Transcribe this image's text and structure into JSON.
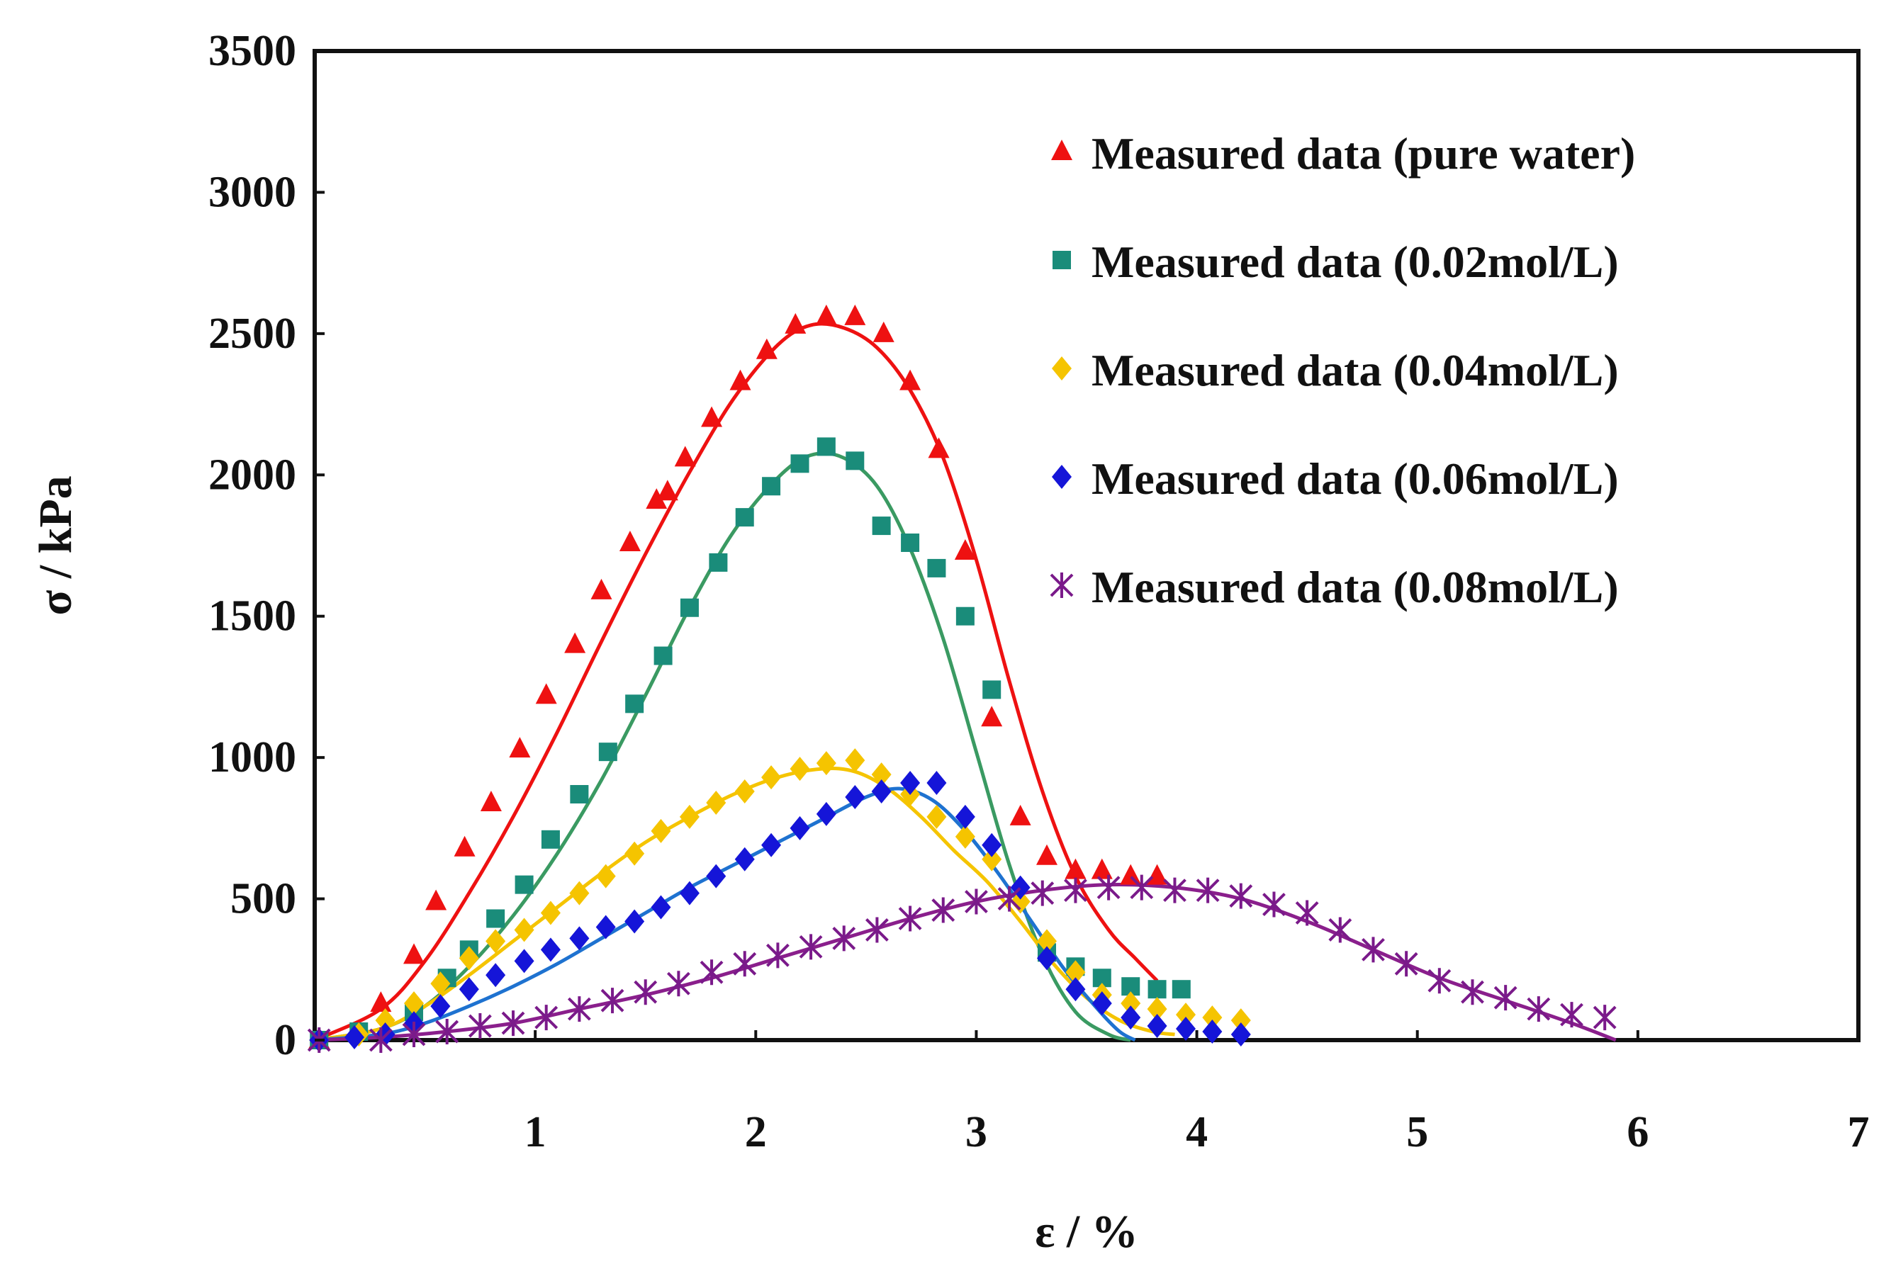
{
  "chart_data": {
    "type": "scatter",
    "title": "",
    "xlabel": "ε / %",
    "ylabel": "σ / kPa",
    "xlim": [
      0,
      7
    ],
    "ylim": [
      0,
      3500
    ],
    "xticks": [
      1,
      2,
      3,
      4,
      5,
      6,
      7
    ],
    "yticks": [
      0,
      500,
      1000,
      1500,
      2000,
      2500,
      3000,
      3500
    ],
    "legend_position": "top-right",
    "series": [
      {
        "name": "Measured data (pure water)",
        "color": "#ee1111",
        "marker": "triangle",
        "points": [
          [
            0.02,
            0
          ],
          [
            0.3,
            130
          ],
          [
            0.45,
            300
          ],
          [
            0.55,
            490
          ],
          [
            0.68,
            680
          ],
          [
            0.8,
            840
          ],
          [
            0.93,
            1030
          ],
          [
            1.05,
            1220
          ],
          [
            1.18,
            1400
          ],
          [
            1.3,
            1590
          ],
          [
            1.43,
            1760
          ],
          [
            1.55,
            1910
          ],
          [
            1.6,
            1940
          ],
          [
            1.68,
            2060
          ],
          [
            1.8,
            2200
          ],
          [
            1.93,
            2330
          ],
          [
            2.05,
            2440
          ],
          [
            2.18,
            2530
          ],
          [
            2.32,
            2560
          ],
          [
            2.45,
            2560
          ],
          [
            2.58,
            2500
          ],
          [
            2.7,
            2330
          ],
          [
            2.83,
            2090
          ],
          [
            2.95,
            1730
          ],
          [
            3.07,
            1140
          ],
          [
            3.2,
            790
          ],
          [
            3.32,
            650
          ],
          [
            3.45,
            600
          ],
          [
            3.57,
            600
          ],
          [
            3.7,
            580
          ],
          [
            3.82,
            580
          ]
        ]
      },
      {
        "name": "Measured data (0.02mol/L)",
        "color": "#1a8c7a",
        "marker": "square",
        "points": [
          [
            0.02,
            0
          ],
          [
            0.2,
            30
          ],
          [
            0.45,
            100
          ],
          [
            0.6,
            220
          ],
          [
            0.7,
            320
          ],
          [
            0.82,
            430
          ],
          [
            0.95,
            550
          ],
          [
            1.07,
            710
          ],
          [
            1.2,
            870
          ],
          [
            1.33,
            1020
          ],
          [
            1.45,
            1190
          ],
          [
            1.58,
            1360
          ],
          [
            1.7,
            1530
          ],
          [
            1.83,
            1690
          ],
          [
            1.95,
            1850
          ],
          [
            2.07,
            1960
          ],
          [
            2.2,
            2040
          ],
          [
            2.32,
            2100
          ],
          [
            2.45,
            2050
          ],
          [
            2.57,
            1820
          ],
          [
            2.7,
            1760
          ],
          [
            2.82,
            1670
          ],
          [
            2.95,
            1500
          ],
          [
            3.07,
            1240
          ],
          [
            3.32,
            310
          ],
          [
            3.45,
            260
          ],
          [
            3.57,
            220
          ],
          [
            3.7,
            190
          ],
          [
            3.82,
            180
          ],
          [
            3.93,
            180
          ]
        ]
      },
      {
        "name": "Measured data (0.04mol/L)",
        "color": "#f5c400",
        "marker": "diamond",
        "points": [
          [
            0.02,
            0
          ],
          [
            0.2,
            20
          ],
          [
            0.32,
            70
          ],
          [
            0.45,
            130
          ],
          [
            0.57,
            200
          ],
          [
            0.7,
            290
          ],
          [
            0.82,
            350
          ],
          [
            0.95,
            390
          ],
          [
            1.07,
            450
          ],
          [
            1.2,
            520
          ],
          [
            1.32,
            580
          ],
          [
            1.45,
            660
          ],
          [
            1.57,
            740
          ],
          [
            1.7,
            790
          ],
          [
            1.82,
            840
          ],
          [
            1.95,
            880
          ],
          [
            2.07,
            930
          ],
          [
            2.2,
            960
          ],
          [
            2.32,
            980
          ],
          [
            2.45,
            990
          ],
          [
            2.57,
            940
          ],
          [
            2.7,
            870
          ],
          [
            2.82,
            790
          ],
          [
            2.95,
            720
          ],
          [
            3.07,
            640
          ],
          [
            3.2,
            490
          ],
          [
            3.32,
            350
          ],
          [
            3.45,
            240
          ],
          [
            3.57,
            160
          ],
          [
            3.7,
            130
          ],
          [
            3.82,
            110
          ],
          [
            3.95,
            90
          ],
          [
            4.07,
            80
          ],
          [
            4.2,
            70
          ]
        ]
      },
      {
        "name": "Measured data (0.06mol/L)",
        "color": "#1515d8",
        "marker": "diamond",
        "points": [
          [
            0.02,
            0
          ],
          [
            0.18,
            10
          ],
          [
            0.32,
            20
          ],
          [
            0.45,
            60
          ],
          [
            0.57,
            120
          ],
          [
            0.7,
            180
          ],
          [
            0.82,
            230
          ],
          [
            0.95,
            280
          ],
          [
            1.07,
            320
          ],
          [
            1.2,
            360
          ],
          [
            1.32,
            400
          ],
          [
            1.45,
            420
          ],
          [
            1.57,
            470
          ],
          [
            1.7,
            520
          ],
          [
            1.82,
            580
          ],
          [
            1.95,
            640
          ],
          [
            2.07,
            690
          ],
          [
            2.2,
            750
          ],
          [
            2.32,
            800
          ],
          [
            2.45,
            860
          ],
          [
            2.57,
            880
          ],
          [
            2.7,
            910
          ],
          [
            2.82,
            910
          ],
          [
            2.95,
            790
          ],
          [
            3.07,
            690
          ],
          [
            3.2,
            540
          ],
          [
            3.32,
            290
          ],
          [
            3.45,
            180
          ],
          [
            3.57,
            130
          ],
          [
            3.7,
            80
          ],
          [
            3.82,
            50
          ],
          [
            3.95,
            40
          ],
          [
            4.07,
            30
          ],
          [
            4.2,
            20
          ]
        ]
      },
      {
        "name": "Measured data (0.08mol/L)",
        "color": "#7a1a8a",
        "marker": "star",
        "points": [
          [
            0.02,
            0
          ],
          [
            0.3,
            0
          ],
          [
            0.45,
            20
          ],
          [
            0.6,
            30
          ],
          [
            0.75,
            50
          ],
          [
            0.9,
            60
          ],
          [
            1.05,
            80
          ],
          [
            1.2,
            110
          ],
          [
            1.35,
            140
          ],
          [
            1.5,
            170
          ],
          [
            1.65,
            200
          ],
          [
            1.8,
            240
          ],
          [
            1.95,
            270
          ],
          [
            2.1,
            300
          ],
          [
            2.25,
            330
          ],
          [
            2.4,
            360
          ],
          [
            2.55,
            390
          ],
          [
            2.7,
            430
          ],
          [
            2.85,
            460
          ],
          [
            3.0,
            490
          ],
          [
            3.15,
            500
          ],
          [
            3.3,
            520
          ],
          [
            3.45,
            530
          ],
          [
            3.6,
            540
          ],
          [
            3.75,
            540
          ],
          [
            3.9,
            530
          ],
          [
            4.05,
            530
          ],
          [
            4.2,
            510
          ],
          [
            4.35,
            480
          ],
          [
            4.5,
            450
          ],
          [
            4.65,
            390
          ],
          [
            4.8,
            320
          ],
          [
            4.95,
            270
          ],
          [
            5.1,
            210
          ],
          [
            5.25,
            170
          ],
          [
            5.4,
            150
          ],
          [
            5.55,
            110
          ],
          [
            5.7,
            90
          ],
          [
            5.85,
            80
          ]
        ]
      }
    ],
    "fit_curves": [
      {
        "color": "#ee1111",
        "points": [
          [
            0,
            0
          ],
          [
            0.3,
            110
          ],
          [
            0.5,
            280
          ],
          [
            0.7,
            520
          ],
          [
            0.9,
            790
          ],
          [
            1.1,
            1090
          ],
          [
            1.3,
            1410
          ],
          [
            1.5,
            1720
          ],
          [
            1.7,
            2010
          ],
          [
            1.9,
            2270
          ],
          [
            2.1,
            2460
          ],
          [
            2.25,
            2530
          ],
          [
            2.4,
            2520
          ],
          [
            2.55,
            2450
          ],
          [
            2.7,
            2300
          ],
          [
            2.85,
            2060
          ],
          [
            3.0,
            1700
          ],
          [
            3.15,
            1270
          ],
          [
            3.3,
            880
          ],
          [
            3.45,
            580
          ],
          [
            3.6,
            390
          ],
          [
            3.72,
            290
          ],
          [
            3.82,
            210
          ]
        ]
      },
      {
        "color": "#3a9a62",
        "points": [
          [
            0,
            0
          ],
          [
            0.3,
            40
          ],
          [
            0.5,
            120
          ],
          [
            0.7,
            260
          ],
          [
            0.9,
            440
          ],
          [
            1.1,
            660
          ],
          [
            1.3,
            920
          ],
          [
            1.5,
            1220
          ],
          [
            1.7,
            1530
          ],
          [
            1.9,
            1800
          ],
          [
            2.1,
            1990
          ],
          [
            2.25,
            2070
          ],
          [
            2.4,
            2060
          ],
          [
            2.55,
            1960
          ],
          [
            2.7,
            1740
          ],
          [
            2.85,
            1420
          ],
          [
            3.0,
            1020
          ],
          [
            3.15,
            620
          ],
          [
            3.3,
            300
          ],
          [
            3.45,
            100
          ],
          [
            3.6,
            20
          ],
          [
            3.7,
            0
          ]
        ]
      },
      {
        "color": "#f5c400",
        "points": [
          [
            0,
            0
          ],
          [
            0.3,
            40
          ],
          [
            0.5,
            120
          ],
          [
            0.7,
            230
          ],
          [
            0.9,
            350
          ],
          [
            1.1,
            470
          ],
          [
            1.3,
            590
          ],
          [
            1.5,
            700
          ],
          [
            1.7,
            790
          ],
          [
            1.9,
            870
          ],
          [
            2.1,
            930
          ],
          [
            2.3,
            960
          ],
          [
            2.45,
            950
          ],
          [
            2.6,
            890
          ],
          [
            2.75,
            790
          ],
          [
            2.9,
            670
          ],
          [
            3.05,
            560
          ],
          [
            3.2,
            420
          ],
          [
            3.35,
            270
          ],
          [
            3.5,
            150
          ],
          [
            3.65,
            70
          ],
          [
            3.8,
            30
          ],
          [
            3.9,
            20
          ]
        ]
      },
      {
        "color": "#1e72d0",
        "points": [
          [
            0,
            0
          ],
          [
            0.3,
            20
          ],
          [
            0.5,
            60
          ],
          [
            0.7,
            120
          ],
          [
            0.9,
            190
          ],
          [
            1.1,
            270
          ],
          [
            1.3,
            360
          ],
          [
            1.5,
            450
          ],
          [
            1.7,
            540
          ],
          [
            1.9,
            620
          ],
          [
            2.1,
            700
          ],
          [
            2.3,
            780
          ],
          [
            2.5,
            860
          ],
          [
            2.65,
            890
          ],
          [
            2.8,
            850
          ],
          [
            2.95,
            740
          ],
          [
            3.1,
            590
          ],
          [
            3.25,
            420
          ],
          [
            3.4,
            250
          ],
          [
            3.55,
            110
          ],
          [
            3.65,
            30
          ],
          [
            3.72,
            0
          ]
        ]
      },
      {
        "color": "#8a1f8c",
        "points": [
          [
            0,
            0
          ],
          [
            0.3,
            10
          ],
          [
            0.6,
            30
          ],
          [
            0.9,
            60
          ],
          [
            1.2,
            110
          ],
          [
            1.5,
            160
          ],
          [
            1.8,
            220
          ],
          [
            2.1,
            290
          ],
          [
            2.4,
            360
          ],
          [
            2.7,
            430
          ],
          [
            3.0,
            490
          ],
          [
            3.3,
            530
          ],
          [
            3.6,
            550
          ],
          [
            3.9,
            540
          ],
          [
            4.2,
            500
          ],
          [
            4.5,
            420
          ],
          [
            4.8,
            320
          ],
          [
            5.1,
            220
          ],
          [
            5.4,
            140
          ],
          [
            5.7,
            60
          ],
          [
            5.9,
            0
          ]
        ]
      }
    ]
  }
}
